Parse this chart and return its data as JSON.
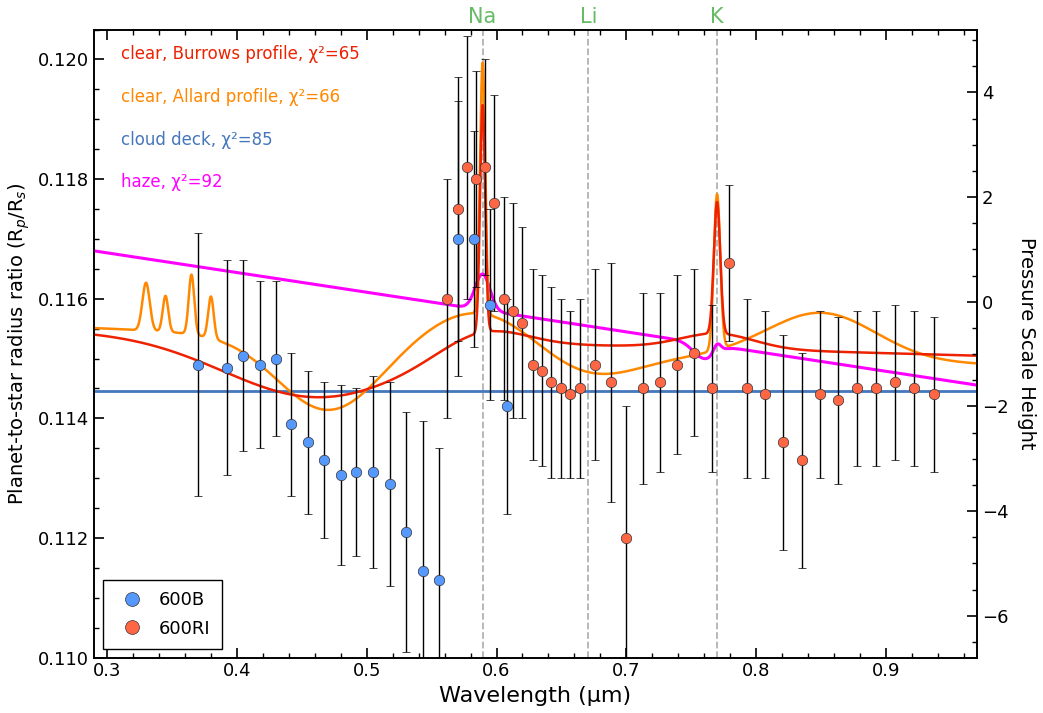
{
  "xlabel": "Wavelength (μm)",
  "ylabel_left": "Planet-to-star radius ratio (R$_p$/R$_s$)",
  "ylabel_right": "Pressure Scale Height",
  "xlim": [
    0.29,
    0.97
  ],
  "ylim_left": [
    0.11,
    0.1205
  ],
  "ylim_right": [
    -6.8,
    5.2
  ],
  "horizontal_line_y": 0.11445,
  "horizontal_line_color": "#4477BB",
  "vlines": [
    0.5893,
    0.6708,
    0.7699
  ],
  "vline_labels": [
    "Na",
    "Li",
    "K"
  ],
  "vline_label_color": "#66BB66",
  "legend_labels_top": [
    "clear, Burrows profile, χ²=65",
    "clear, Allard profile, χ²=66",
    "cloud deck, χ²=85",
    "haze, χ²=92"
  ],
  "legend_colors_top": [
    "#EE2200",
    "#FF8800",
    "#4477BB",
    "#FF00FF"
  ],
  "data_600B": {
    "x": [
      0.37,
      0.392,
      0.405,
      0.418,
      0.43,
      0.442,
      0.455,
      0.467,
      0.48,
      0.492,
      0.505,
      0.518,
      0.53,
      0.543,
      0.556,
      0.57,
      0.583,
      0.595,
      0.608
    ],
    "y": [
      0.1149,
      0.11485,
      0.11505,
      0.1149,
      0.115,
      0.1139,
      0.1136,
      0.1133,
      0.11305,
      0.1131,
      0.1131,
      0.1129,
      0.1121,
      0.11145,
      0.1113,
      0.117,
      0.117,
      0.1159,
      0.1142
    ],
    "yerr": [
      0.0022,
      0.0018,
      0.0016,
      0.0014,
      0.0013,
      0.0012,
      0.0012,
      0.0013,
      0.0015,
      0.0014,
      0.0016,
      0.0017,
      0.002,
      0.0025,
      0.0022,
      0.0023,
      0.0018,
      0.0016,
      0.0018
    ],
    "color": "#5599FF"
  },
  "data_600RI": {
    "x": [
      0.562,
      0.57,
      0.577,
      0.584,
      0.591,
      0.598,
      0.606,
      0.613,
      0.62,
      0.628,
      0.635,
      0.642,
      0.65,
      0.657,
      0.664,
      0.676,
      0.688,
      0.7,
      0.713,
      0.726,
      0.739,
      0.752,
      0.766,
      0.779,
      0.793,
      0.807,
      0.821,
      0.835,
      0.849,
      0.863,
      0.878,
      0.892,
      0.907,
      0.922,
      0.937
    ],
    "y": [
      0.116,
      0.1175,
      0.1182,
      0.118,
      0.1182,
      0.1176,
      0.116,
      0.1158,
      0.1156,
      0.1149,
      0.1148,
      0.1146,
      0.1145,
      0.1144,
      0.1145,
      0.1149,
      0.1146,
      0.112,
      0.1145,
      0.1146,
      0.1149,
      0.1151,
      0.1145,
      0.1166,
      0.1145,
      0.1144,
      0.1136,
      0.1133,
      0.1144,
      0.1143,
      0.1145,
      0.1145,
      0.1146,
      0.1145,
      0.1144
    ],
    "yerr": [
      0.002,
      0.0022,
      0.0022,
      0.0018,
      0.0018,
      0.0018,
      0.0017,
      0.0018,
      0.0016,
      0.0016,
      0.0016,
      0.0016,
      0.0015,
      0.0014,
      0.0015,
      0.0016,
      0.002,
      0.0022,
      0.0016,
      0.0015,
      0.0015,
      0.0014,
      0.0014,
      0.0013,
      0.0015,
      0.0014,
      0.0018,
      0.0018,
      0.0014,
      0.0014,
      0.0013,
      0.0013,
      0.0013,
      0.0013,
      0.0013
    ],
    "color": "#FF6644"
  },
  "background_color": "#FFFFFF"
}
